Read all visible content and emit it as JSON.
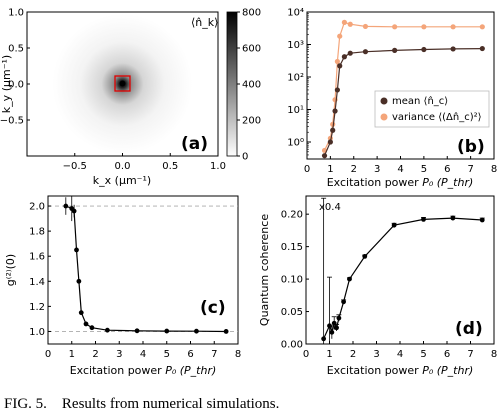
{
  "caption": {
    "label": "FIG. 5.",
    "text": "Results from numerical simulations."
  },
  "colors": {
    "mean": "#4a2f27",
    "variance": "#f4a57a",
    "axis": "#000000",
    "grid": "#aaaaaa"
  },
  "chart_data": [
    {
      "panel": "(a)",
      "type": "heatmap",
      "xlabel": "k_x (μm⁻¹)",
      "ylabel": "k_y (μm⁻¹)",
      "xlim": [
        -1.0,
        1.0
      ],
      "ylim": [
        -1.0,
        1.0
      ],
      "xticks": [
        "−0.5",
        "0.0",
        "0.5",
        "1.0"
      ],
      "yticks": [
        "−0.5",
        "0.0",
        "0.5",
        "1.0"
      ],
      "inset_label": "⟨n̂_k⟩",
      "colorbar": {
        "min": 0,
        "max": 800,
        "ticks": [
          "0",
          "200",
          "400",
          "600",
          "800"
        ]
      },
      "highlight_box": {
        "center": [
          0.0,
          0.0
        ],
        "half_width": 0.08,
        "color": "#e00000"
      },
      "peak_value": 800
    },
    {
      "panel": "(b)",
      "type": "line",
      "yscale": "log",
      "xlabel": "Excitation power",
      "xlabel_symbol": "P₀ (P_thr)",
      "xlim": [
        0,
        8
      ],
      "ylim": [
        0.3,
        10000
      ],
      "xticks": [
        "0",
        "1",
        "2",
        "3",
        "4",
        "5",
        "6",
        "7",
        "8"
      ],
      "yticks": [
        "10⁰",
        "10¹",
        "10²",
        "10³",
        "10⁴"
      ],
      "legend": "center-right",
      "series": [
        {
          "name": "mean ⟨n̂_c⟩",
          "color": "#4a2f27",
          "x": [
            0.75,
            1.0,
            1.1,
            1.2,
            1.3,
            1.4,
            1.6,
            1.85,
            2.5,
            3.75,
            5.0,
            6.25,
            7.5
          ],
          "y": [
            0.38,
            1.0,
            2.3,
            9,
            40,
            220,
            420,
            540,
            600,
            660,
            700,
            730,
            750
          ]
        },
        {
          "name": "variance ⟨(Δn̂_c)²⟩",
          "color": "#f4a57a",
          "x": [
            0.75,
            1.0,
            1.1,
            1.2,
            1.3,
            1.4,
            1.6,
            1.85,
            2.5,
            3.75,
            5.0,
            6.25,
            7.5
          ],
          "y": [
            0.55,
            1.3,
            3.5,
            20,
            300,
            1800,
            4800,
            4200,
            3600,
            3500,
            3500,
            3500,
            3500
          ]
        }
      ]
    },
    {
      "panel": "(c)",
      "type": "line",
      "ylabel": "g⁽²⁾(0)",
      "xlabel": "Excitation power",
      "xlabel_symbol": "P₀ (P_thr)",
      "xlim": [
        0,
        8
      ],
      "ylim": [
        0.9,
        2.08
      ],
      "xticks": [
        "0",
        "1",
        "2",
        "3",
        "4",
        "5",
        "6",
        "7",
        "8"
      ],
      "yticks": [
        "1.0",
        "1.2",
        "1.4",
        "1.6",
        "1.8",
        "2.0"
      ],
      "reference_lines": [
        1.0,
        2.0
      ],
      "series": [
        {
          "name": "",
          "color": "#000000",
          "x": [
            0.75,
            1.0,
            1.1,
            1.2,
            1.3,
            1.4,
            1.6,
            1.85,
            2.5,
            3.75,
            5.0,
            6.25,
            7.5
          ],
          "y": [
            2.0,
            1.98,
            1.96,
            1.65,
            1.4,
            1.15,
            1.06,
            1.03,
            1.01,
            1.005,
            1.003,
            1.002,
            1.0
          ],
          "err": [
            0.07,
            0.1,
            0.05,
            0.02,
            0.01,
            0.01,
            0.005,
            0,
            0,
            0,
            0,
            0,
            0
          ]
        }
      ]
    },
    {
      "panel": "(d)",
      "type": "line",
      "ylabel": "Quantum coherence",
      "xlabel": "Excitation power",
      "xlabel_symbol": "P₀ (P_thr)",
      "xlim": [
        0,
        8
      ],
      "ylim": [
        0,
        0.228
      ],
      "xticks": [
        "0",
        "1",
        "2",
        "3",
        "4",
        "5",
        "6",
        "7",
        "8"
      ],
      "yticks": [
        "0.00",
        "0.05",
        "0.10",
        "0.15",
        "0.20"
      ],
      "annotation": "x0.4",
      "series": [
        {
          "name": "",
          "color": "#000000",
          "x": [
            0.75,
            1.0,
            1.1,
            1.2,
            1.3,
            1.4,
            1.6,
            1.85,
            2.5,
            3.75,
            5.0,
            6.25,
            7.5
          ],
          "y": [
            0.008,
            0.028,
            0.018,
            0.032,
            0.025,
            0.04,
            0.065,
            0.1,
            0.135,
            0.183,
            0.192,
            0.194,
            0.191
          ],
          "err": [
            0.22,
            0.075,
            0.01,
            0.01,
            0.005,
            0.005,
            0.003,
            0.002,
            0.002,
            0.003,
            0.003,
            0.003,
            0.003
          ]
        }
      ]
    }
  ]
}
